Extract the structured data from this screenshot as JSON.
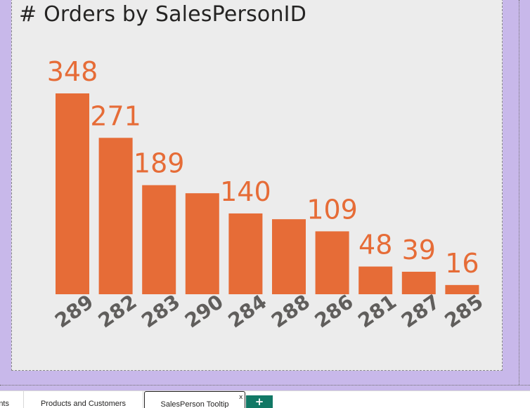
{
  "visual": {
    "title": "# Orders by SalesPersonID"
  },
  "colors": {
    "bar": "#e66c37",
    "data_label": "#e66c37",
    "axis_label": "#605e5c",
    "background": "#c8b8ea",
    "visual_background": "#ececec",
    "tab_accent": "#117865"
  },
  "chart_data": {
    "type": "bar",
    "title": "# Orders by SalesPersonID",
    "xlabel": "",
    "ylabel": "",
    "categories": [
      "289",
      "282",
      "283",
      "290",
      "284",
      "288",
      "286",
      "281",
      "287",
      "285"
    ],
    "values": [
      348,
      271,
      189,
      175,
      140,
      130,
      109,
      48,
      39,
      16
    ],
    "data_labels": [
      "348",
      "271",
      "189",
      "",
      "140",
      "",
      "109",
      "48",
      "39",
      "16"
    ],
    "ylim": [
      0,
      348
    ],
    "grid": false,
    "legend": "none"
  },
  "tabs": [
    {
      "label": "nts"
    },
    {
      "label": "Products and Customers"
    },
    {
      "label": "SalesPerson Tooltip",
      "active": true
    }
  ],
  "tab_close_label": "x",
  "add_page_label": "+",
  "add_page_icon": "plus-icon"
}
